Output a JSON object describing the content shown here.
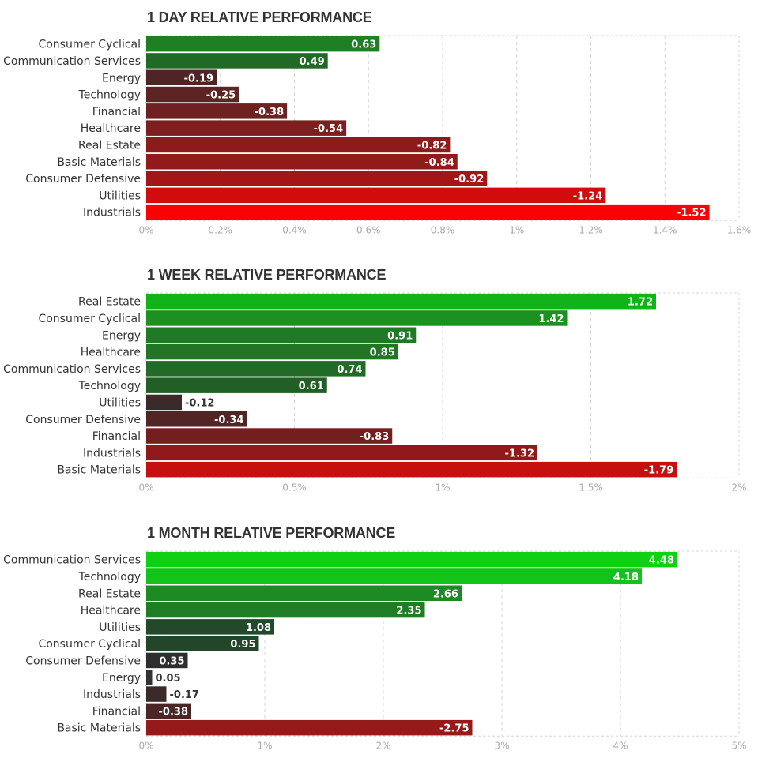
{
  "chart_data": [
    {
      "type": "bar",
      "orientation": "horizontal",
      "title": "1 DAY RELATIVE PERFORMANCE",
      "categories": [
        "Consumer Cyclical",
        "Communication Services",
        "Energy",
        "Technology",
        "Financial",
        "Healthcare",
        "Real Estate",
        "Basic Materials",
        "Consumer Defensive",
        "Utilities",
        "Industrials"
      ],
      "values": [
        0.63,
        0.49,
        -0.19,
        -0.25,
        -0.38,
        -0.54,
        -0.82,
        -0.84,
        -0.92,
        -1.24,
        -1.52
      ],
      "value_labels": [
        "0.63",
        "0.49",
        "-0.19",
        "-0.25",
        "-0.38",
        "-0.54",
        "-0.82",
        "-0.84",
        "-0.92",
        "-1.24",
        "-1.52"
      ],
      "bar_colors": [
        "#1e7f25",
        "#216a26",
        "#4f2424",
        "#5e2424",
        "#6f2121",
        "#7d1f1f",
        "#8e1b1b",
        "#931a1a",
        "#a41616",
        "#d20c0c",
        "#fb0202"
      ],
      "xlim": [
        0,
        1.6
      ],
      "xticks": [
        0,
        0.2,
        0.4,
        0.6,
        0.8,
        1,
        1.2,
        1.4,
        1.6
      ],
      "xtick_labels": [
        "0%",
        "0.2%",
        "0.4%",
        "0.6%",
        "0.8%",
        "1%",
        "1.2%",
        "1.4%",
        "1.6%"
      ],
      "bar_length": "absolute value",
      "grid": true
    },
    {
      "type": "bar",
      "orientation": "horizontal",
      "title": "1 WEEK RELATIVE PERFORMANCE",
      "categories": [
        "Real Estate",
        "Consumer Cyclical",
        "Energy",
        "Healthcare",
        "Communication Services",
        "Technology",
        "Utilities",
        "Consumer Defensive",
        "Financial",
        "Industrials",
        "Basic Materials"
      ],
      "values": [
        1.72,
        1.42,
        0.91,
        0.85,
        0.74,
        0.61,
        -0.12,
        -0.34,
        -0.83,
        -1.32,
        -1.79
      ],
      "value_labels": [
        "1.72",
        "1.42",
        "0.91",
        "0.85",
        "0.74",
        "0.61",
        "-0.12",
        "-0.34",
        "-0.83",
        "-1.32",
        "-1.79"
      ],
      "bar_colors": [
        "#10b418",
        "#1a9121",
        "#1f7a25",
        "#217525",
        "#226b26",
        "#225f26",
        "#3a2a2b",
        "#522424",
        "#731f1f",
        "#921919",
        "#c51010"
      ],
      "xlim": [
        0,
        2
      ],
      "xticks": [
        0,
        0.5,
        1,
        1.5,
        2
      ],
      "xtick_labels": [
        "0%",
        "0.5%",
        "1%",
        "1.5%",
        "2%"
      ],
      "bar_length": "absolute value",
      "grid": true
    },
    {
      "type": "bar",
      "orientation": "horizontal",
      "title": "1 MONTH RELATIVE PERFORMANCE",
      "categories": [
        "Communication Services",
        "Technology",
        "Real Estate",
        "Healthcare",
        "Utilities",
        "Consumer Cyclical",
        "Consumer Defensive",
        "Energy",
        "Industrials",
        "Financial",
        "Basic Materials"
      ],
      "values": [
        4.48,
        4.18,
        2.66,
        2.35,
        1.08,
        0.95,
        0.35,
        0.05,
        -0.17,
        -0.38,
        -2.75
      ],
      "value_labels": [
        "4.48",
        "4.18",
        "2.66",
        "2.35",
        "1.08",
        "0.95",
        "0.35",
        "0.05",
        "-0.17",
        "-0.38",
        "-2.75"
      ],
      "bar_colors": [
        "#10d014",
        "#12c41a",
        "#1e8a24",
        "#1f7e25",
        "#22492a",
        "#23452a",
        "#2e2e2e",
        "#323232",
        "#3c2a2a",
        "#4a2626",
        "#951a1a"
      ],
      "xlim": [
        0,
        5
      ],
      "xticks": [
        0,
        1,
        2,
        3,
        4,
        5
      ],
      "xtick_labels": [
        "0%",
        "1%",
        "2%",
        "3%",
        "4%",
        "5%"
      ],
      "bar_length": "absolute value",
      "grid": true
    }
  ]
}
